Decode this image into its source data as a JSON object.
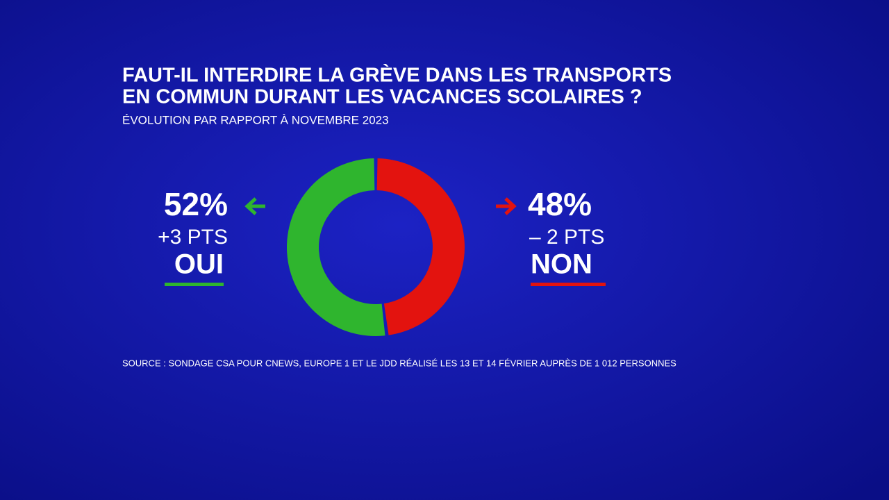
{
  "chart_data": {
    "type": "pie",
    "donut": true,
    "title": [
      "FAUT-IL INTERDIRE LA GRÈVE DANS LES TRANSPORTS",
      "EN COMMUN DURANT LES VACANCES SCOLAIRES ?"
    ],
    "subtitle": "ÉVOLUTION PAR RAPPORT À NOVEMBRE 2023",
    "categories": [
      "OUI",
      "NON"
    ],
    "values": [
      52,
      48
    ],
    "value_labels": [
      "52%",
      "48%"
    ],
    "colors": [
      "#2fb52e",
      "#e3130f"
    ],
    "change_values": [
      3,
      -2
    ],
    "change_labels": [
      "+3 PTS",
      "– 2 PTS"
    ],
    "source": "SOURCE : SONDAGE CSA POUR CNEWS, EUROPE 1 ET LE JDD RÉALISÉ LES 13 ET 14 FÉVRIER AUPRÈS DE 1 012 PERSONNES"
  }
}
